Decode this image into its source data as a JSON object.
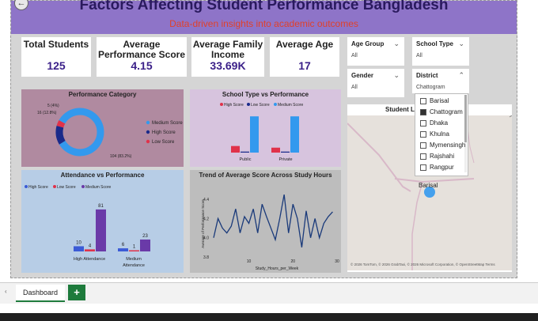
{
  "header": {
    "title": "Factors Affecting Student Performance Bangladesh",
    "subtitle": "Data-driven insights into academic outcomes"
  },
  "kpis": [
    {
      "label": "Total Students",
      "value": "125"
    },
    {
      "label": "Average Performance Score",
      "value": "4.15"
    },
    {
      "label": "Average Family Income",
      "value": "33.69K"
    },
    {
      "label": "Average Age",
      "value": "17"
    }
  ],
  "slicers": {
    "age_group": {
      "label": "Age Group",
      "value": "All"
    },
    "school_type": {
      "label": "School Type",
      "value": "All"
    },
    "gender": {
      "label": "Gender",
      "value": "All"
    },
    "district": {
      "label": "District",
      "value": "Chattogram"
    }
  },
  "district_options": [
    "Barisal",
    "Chattogram",
    "Dhaka",
    "Khulna",
    "Mymensingh",
    "Rajshahi",
    "Rangpur"
  ],
  "district_selected": "Chattogram",
  "map": {
    "title": "Student L... ap",
    "city_label": "Barisal",
    "attribution": "© 2026 TomTom, © 2026 GrabTaxi, © 2026 Microsoft Corporation, © OpenStreetMap Terms",
    "logo": "Microsoft Bing"
  },
  "colors": {
    "high": "#e0324a",
    "low": "#1a2a8a",
    "medium": "#3399ee",
    "bar_purple": "#6a3aa8",
    "bar_blue": "#3b5bd6"
  },
  "chart_data": [
    {
      "type": "pie",
      "title": "Performance Category",
      "categories": [
        "Medium Score",
        "High Score",
        "Low Score"
      ],
      "values": [
        104,
        16,
        5
      ],
      "labels": [
        "104 (83.2%)",
        "16 (12.8%)",
        "5 (4%)"
      ]
    },
    {
      "type": "bar",
      "title": "School Type vs Performance",
      "categories": [
        "Public",
        "Private"
      ],
      "series": [
        {
          "name": "High Score",
          "values": [
            2,
            1.5
          ]
        },
        {
          "name": "Low Score",
          "values": [
            0.3,
            0.3
          ]
        },
        {
          "name": "Medium Score",
          "values": [
            11,
            11
          ]
        }
      ],
      "ylim": [
        0,
        12
      ]
    },
    {
      "type": "bar",
      "title": "Attendance vs Performance",
      "categories": [
        "High Attendance",
        "Medium Attendance"
      ],
      "series": [
        {
          "name": "High Score",
          "values": [
            10,
            6
          ]
        },
        {
          "name": "Low Score",
          "values": [
            4,
            1
          ]
        },
        {
          "name": "Medium Score",
          "values": [
            81,
            23
          ]
        }
      ],
      "ylim": [
        0,
        90
      ]
    },
    {
      "type": "line",
      "title": "Trend of Average Score Across Study Hours",
      "xlabel": "Study_Hours_per_Week",
      "ylabel": "Average of Performance Score",
      "xticks": [
        "10",
        "20",
        "30"
      ],
      "yticks": [
        "3.8",
        "4.0",
        "4.2",
        "4.4"
      ],
      "xlim": [
        2,
        30
      ],
      "ylim": [
        3.8,
        4.5
      ],
      "x": [
        2,
        3,
        4,
        5,
        6,
        7,
        8,
        9,
        10,
        11,
        12,
        13,
        14,
        15,
        16,
        17,
        18,
        19,
        20,
        21,
        22,
        23,
        24,
        25,
        26,
        27,
        28,
        29
      ],
      "y": [
        4.0,
        4.2,
        4.1,
        4.05,
        4.12,
        4.3,
        4.05,
        4.22,
        4.15,
        4.3,
        4.05,
        4.35,
        4.22,
        4.1,
        3.98,
        4.2,
        4.45,
        4.05,
        4.35,
        4.2,
        3.9,
        4.28,
        4.0,
        4.2,
        4.0,
        4.15,
        4.22,
        4.27
      ]
    }
  ],
  "tabs": {
    "active": "Dashboard",
    "add_label": "+"
  }
}
